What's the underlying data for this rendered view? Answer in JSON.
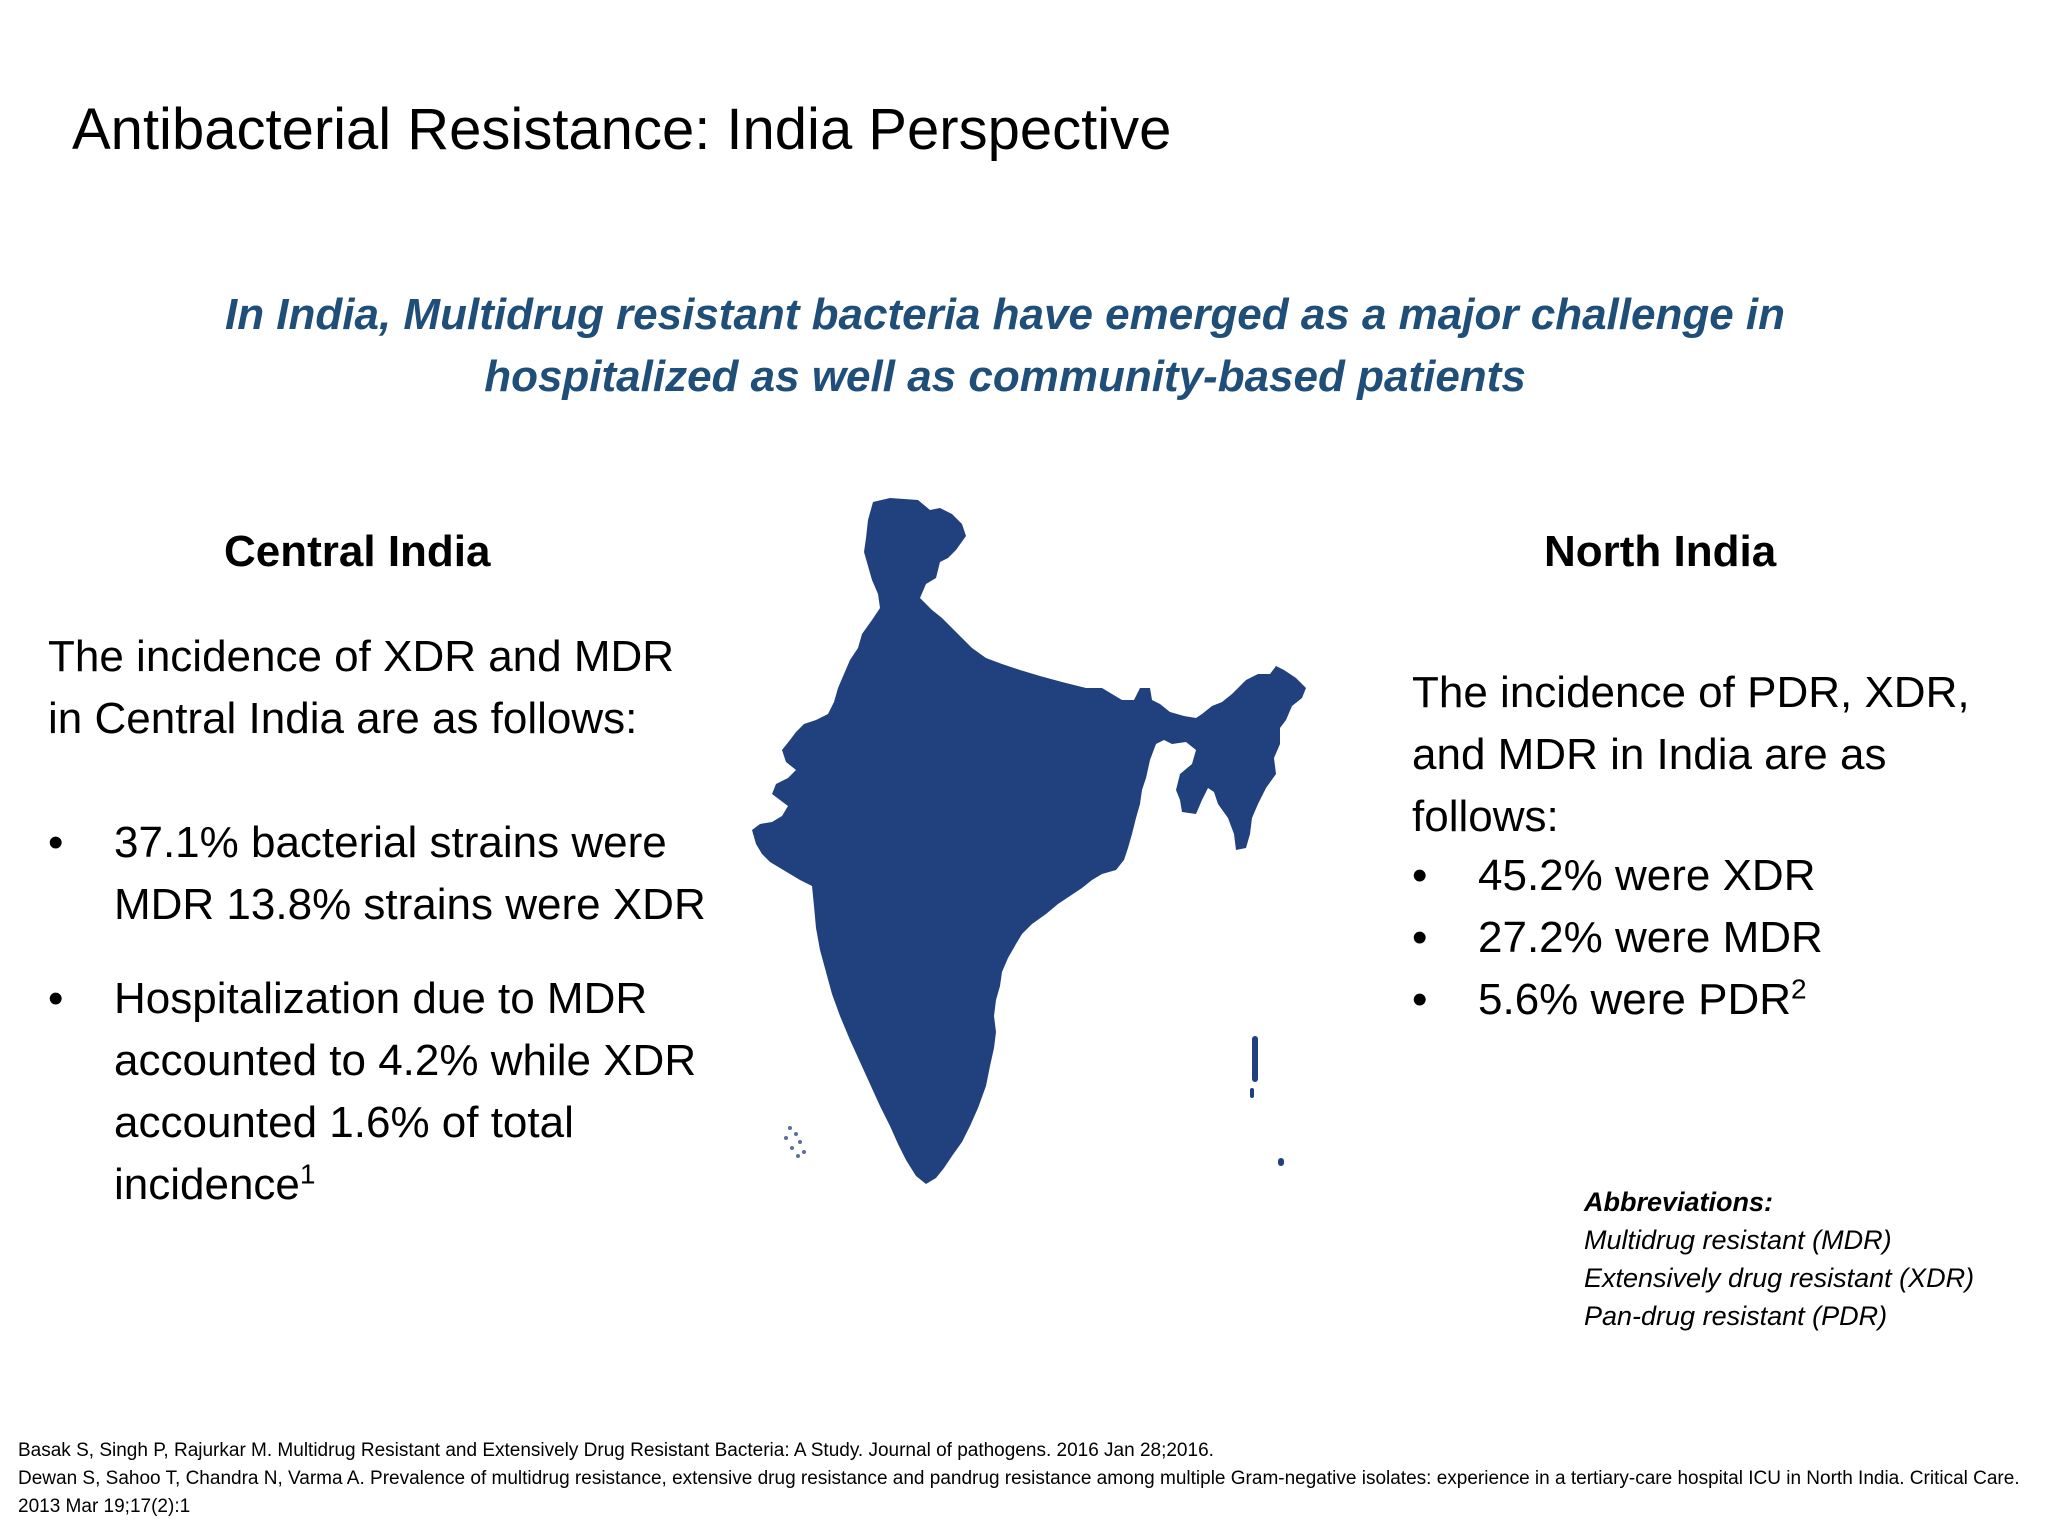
{
  "title": "Antibacterial Resistance: India Perspective",
  "subtitle": {
    "line1": "In India, Multidrug resistant bacteria have emerged as a major challenge in",
    "line2": "hospitalized as well as community-based patients"
  },
  "colors": {
    "subtitle": "#1F4E79",
    "map_fill": "#20417E",
    "text": "#000000",
    "background": "#FFFFFF"
  },
  "central": {
    "heading": "Central India",
    "intro_line1": "The incidence of XDR and MDR",
    "intro_line2": "in Central  India are as follows:",
    "bullets": [
      {
        "lines": [
          "37.1% bacterial strains were",
          "MDR 13.8% strains were XDR"
        ]
      },
      {
        "lines": [
          "Hospitalization due to MDR",
          "accounted to 4.2% while XDR",
          "accounted 1.6% of total",
          "incidence"
        ],
        "ref": "1"
      }
    ]
  },
  "north": {
    "heading": "North  India",
    "intro_line1": "The incidence of PDR, XDR,",
    "intro_line2": "and MDR in India are as",
    "intro_line3": "follows:",
    "bullets": [
      {
        "text": "45.2% were XDR"
      },
      {
        "text": "27.2% were MDR"
      },
      {
        "text": "5.6% were PDR",
        "ref": "2"
      }
    ]
  },
  "bullet_symbol": "•",
  "map": {
    "icon": "india-map-icon"
  },
  "abbreviations": {
    "title": "Abbreviations:",
    "items": [
      "Multidrug resistant (MDR)",
      "Extensively drug resistant (XDR)",
      "Pan-drug resistant (PDR)"
    ]
  },
  "references": [
    "Basak S, Singh P, Rajurkar M. Multidrug Resistant and Extensively Drug Resistant Bacteria: A Study. Journal of pathogens. 2016 Jan 28;2016.",
    "Dewan S, Sahoo T, Chandra N, Varma A. Prevalence of multidrug resistance, extensive drug resistance and pandrug resistance among multiple Gram-negative isolates: experience in a tertiary-care hospital ICU in North India. Critical Care. 2013 Mar 19;17(2):1"
  ]
}
